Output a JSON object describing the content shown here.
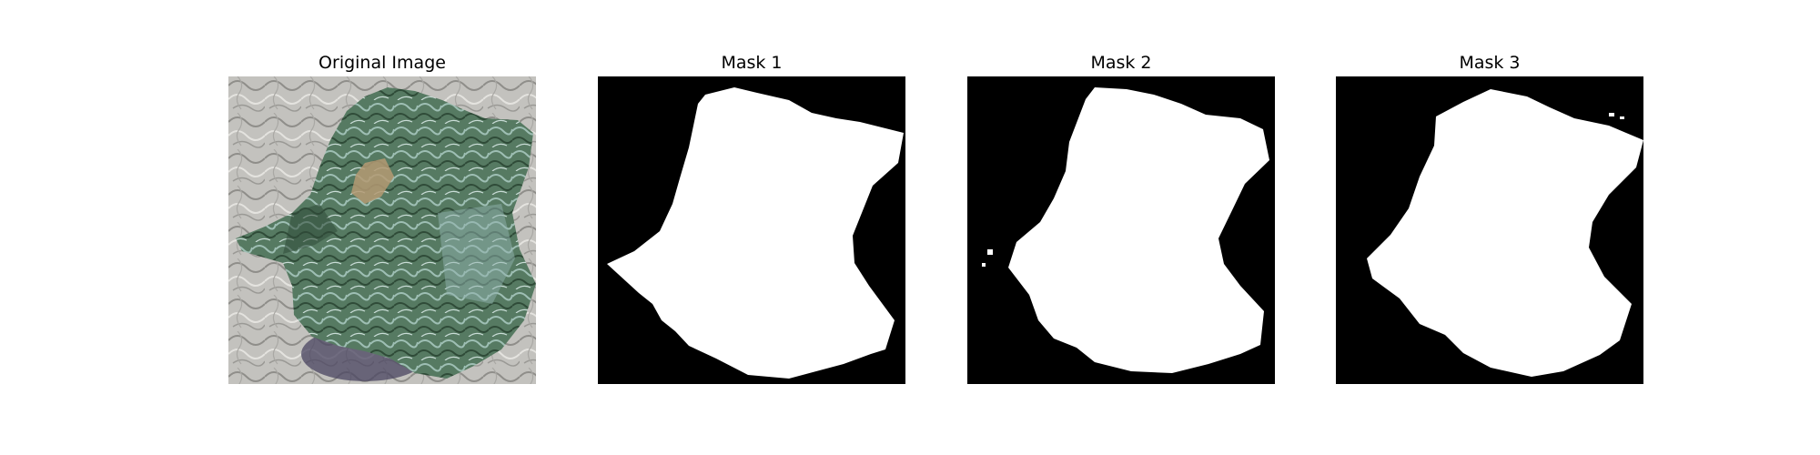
{
  "figure": {
    "panels": [
      {
        "title": "Original Image",
        "kind": "photo"
      },
      {
        "title": "Mask 1",
        "kind": "mask"
      },
      {
        "title": "Mask 2",
        "kind": "mask"
      },
      {
        "title": "Mask 3",
        "kind": "mask"
      }
    ],
    "colors": {
      "background": "#ffffff",
      "mask_background": "#000000",
      "mask_foreground": "#ffffff",
      "texture_base": "#bdbcb8",
      "region_green": "#4f6f55",
      "region_teal": "#6f8f8a",
      "region_tan": "#b49a73",
      "shadow_purple": "#4a4460"
    }
  }
}
